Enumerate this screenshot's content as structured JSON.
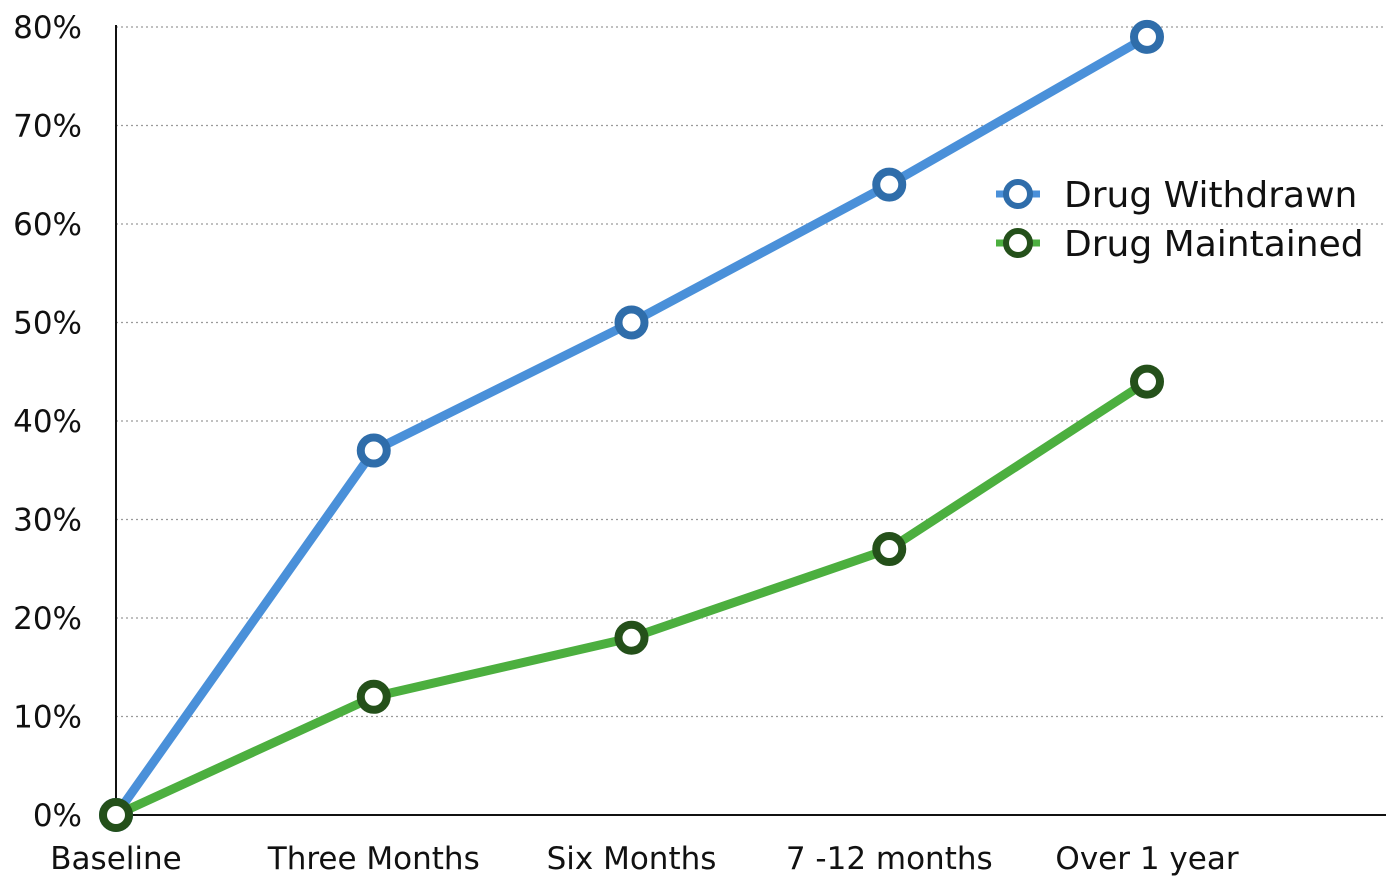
{
  "chart_data": {
    "type": "line",
    "title": "",
    "xlabel": "",
    "ylabel": "",
    "categories": [
      "Baseline",
      "Three Months",
      "Six Months",
      "7 -12 months",
      "Over 1 year"
    ],
    "ylim": [
      0,
      80
    ],
    "y_ticks": [
      0,
      10,
      20,
      30,
      40,
      50,
      60,
      70,
      80
    ],
    "y_tick_labels": [
      "0%",
      "10%",
      "20%",
      "30%",
      "40%",
      "50%",
      "60%",
      "70%",
      "80%"
    ],
    "grid": "horizontal dotted",
    "legend_position": "top-right",
    "series": [
      {
        "name": "Drug Withdrawn",
        "color": "#4A90D9",
        "marker_color": "#2F6DAA",
        "values": [
          0,
          37,
          50,
          64,
          79
        ]
      },
      {
        "name": "Drug Maintained",
        "color": "#4CAF3F",
        "marker_color": "#24501A",
        "values": [
          0,
          12,
          18,
          27,
          44
        ]
      }
    ]
  }
}
